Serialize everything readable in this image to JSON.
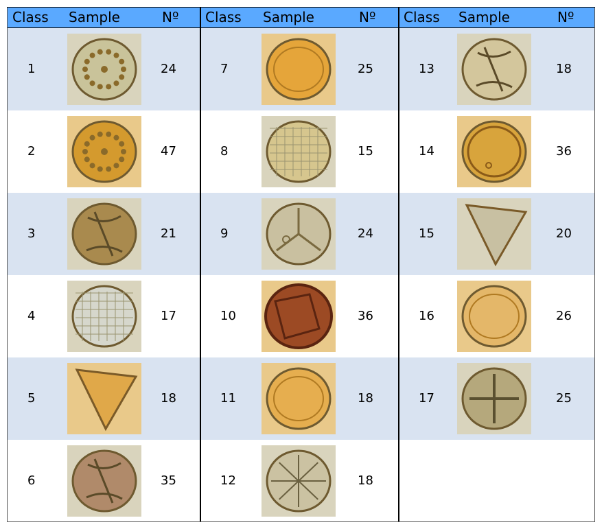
{
  "headers": {
    "class": "Class",
    "sample": "Sample",
    "count": "Nº"
  },
  "colors": {
    "header_bg": "#5aa9ff",
    "row_shade": "#d9e3f1",
    "row_plain": "#ffffff"
  },
  "rows": [
    {
      "class": "1",
      "count": "24",
      "sample": "spiky-round-grain-icon",
      "tint": "#c9c39a"
    },
    {
      "class": "2",
      "count": "47",
      "sample": "spiky-orange-grain-icon",
      "tint": "#d49a2e"
    },
    {
      "class": "3",
      "count": "21",
      "sample": "furrowed-brown-grain-icon",
      "tint": "#a98a4e"
    },
    {
      "class": "4",
      "count": "17",
      "sample": "reticulate-pale-grain-icon",
      "tint": "#d6d7cc"
    },
    {
      "class": "5",
      "count": "18",
      "sample": "triangular-orange-grain-icon",
      "tint": "#e0a849"
    },
    {
      "class": "6",
      "count": "35",
      "sample": "furrowed-purple-grain-icon",
      "tint": "#b08a6a"
    },
    {
      "class": "7",
      "count": "25",
      "sample": "oval-orange-grain-icon",
      "tint": "#e5a53a"
    },
    {
      "class": "8",
      "count": "15",
      "sample": "reticulate-yellow-grain-icon",
      "tint": "#d6c68e"
    },
    {
      "class": "9",
      "count": "24",
      "sample": "trilete-grey-grain-icon",
      "tint": "#c9c0a0"
    },
    {
      "class": "10",
      "count": "36",
      "sample": "folded-red-grain-icon",
      "tint": "#9c4a24"
    },
    {
      "class": "11",
      "count": "18",
      "sample": "round-orange-grain-icon",
      "tint": "#e6ae4f"
    },
    {
      "class": "12",
      "count": "18",
      "sample": "star-patterned-grain-icon",
      "tint": "#cbc2a2"
    },
    {
      "class": "13",
      "count": "18",
      "sample": "furrowed-pale-grain-icon",
      "tint": "#d3c69c"
    },
    {
      "class": "14",
      "count": "36",
      "sample": "ringed-orange-grain-icon",
      "tint": "#d8a43c"
    },
    {
      "class": "15",
      "count": "20",
      "sample": "triangular-grey-grain-icon",
      "tint": "#c8c0a2"
    },
    {
      "class": "16",
      "count": "26",
      "sample": "oval-pale-orange-grain-icon",
      "tint": "#e4b769"
    },
    {
      "class": "17",
      "count": "25",
      "sample": "cross-furrowed-grain-icon",
      "tint": "#b5a87c"
    }
  ]
}
